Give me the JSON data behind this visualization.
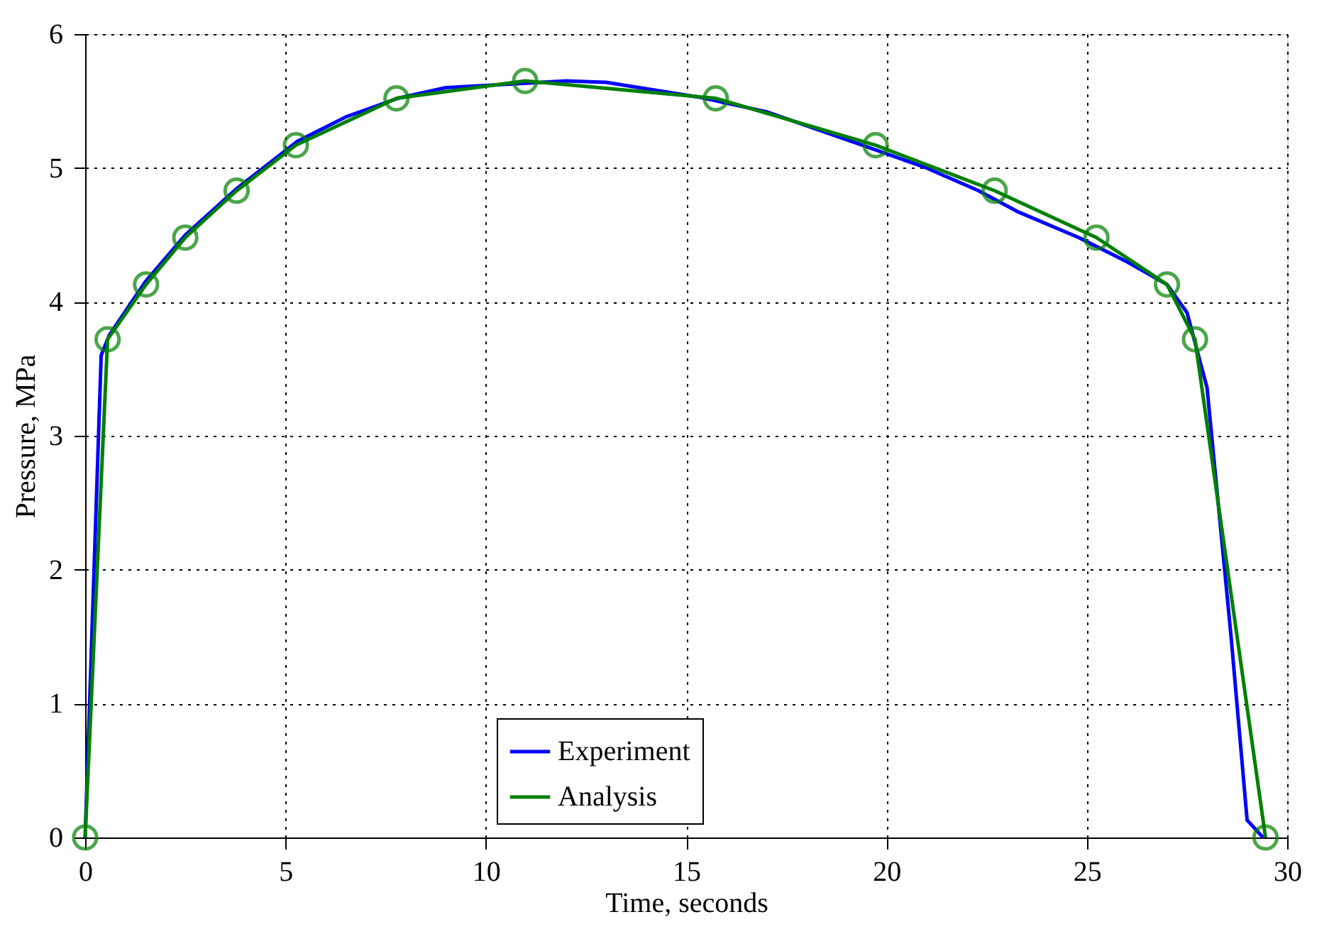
{
  "chart_data": {
    "type": "line",
    "xlabel": "Time, seconds",
    "ylabel": "Pressure, MPa",
    "xlim": [
      0,
      30
    ],
    "ylim": [
      0,
      6
    ],
    "xticks": [
      0,
      5,
      10,
      15,
      20,
      25,
      30
    ],
    "yticks": [
      0,
      1,
      2,
      3,
      4,
      5,
      6
    ],
    "grid": true,
    "legend": "bottom",
    "series": [
      {
        "name": "Experiment",
        "color": "#0000ff",
        "marker": "none",
        "x": [
          0,
          0.4,
          0.6,
          1.5,
          2.5,
          3.8,
          5.3,
          6.5,
          7.8,
          9,
          12,
          13,
          15.3,
          17,
          19.3,
          21,
          22.3,
          23.3,
          24.8,
          26,
          27,
          27.5,
          28,
          28.6,
          29,
          29.4
        ],
        "values": [
          0,
          3.6,
          3.75,
          4.15,
          4.5,
          4.85,
          5.2,
          5.38,
          5.52,
          5.6,
          5.65,
          5.64,
          5.53,
          5.42,
          5.18,
          5,
          4.83,
          4.67,
          4.48,
          4.3,
          4.13,
          3.92,
          3.36,
          1.5,
          0.13,
          0
        ]
      },
      {
        "name": "Analysis",
        "color": "#008000",
        "marker": "circle",
        "x": [
          0,
          0.56,
          1.52,
          2.5,
          3.78,
          5.26,
          7.77,
          10.98,
          15.74,
          19.73,
          22.7,
          25.24,
          27.0,
          27.7,
          29.46
        ],
        "values": [
          0,
          3.72,
          4.13,
          4.48,
          4.83,
          5.17,
          5.52,
          5.65,
          5.52,
          5.17,
          4.83,
          4.48,
          4.13,
          3.72,
          0
        ]
      }
    ]
  }
}
